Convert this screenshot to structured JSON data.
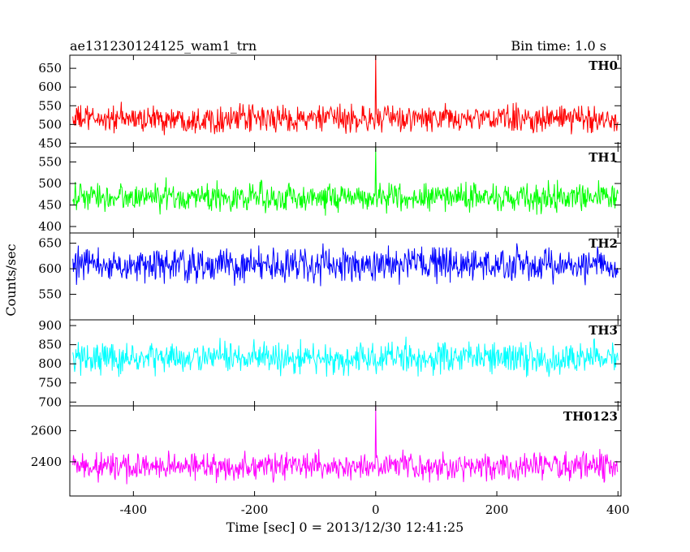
{
  "header": {
    "title": "ae131230124125_wam1_trn",
    "bin_time": "Bin time: 1.0 s"
  },
  "chart_data": {
    "type": "line",
    "xlabel": "Time [sec] 0 = 2013/12/30 12:41:25",
    "ylabel": "Counts/sec",
    "xlim": [
      -505,
      405
    ],
    "xticks": [
      -400,
      -200,
      0,
      200,
      400
    ],
    "x_start": -500,
    "x_end": 400,
    "x_step": 1,
    "panels": [
      {
        "name": "TH0",
        "color": "#ff0000",
        "ylim": [
          440,
          685
        ],
        "yticks": [
          450,
          500,
          550,
          600,
          650
        ],
        "mean": 515,
        "amplitude": 33,
        "spike_x": 0,
        "spike_y": 685
      },
      {
        "name": "TH1",
        "color": "#00ff00",
        "ylim": [
          385,
          585
        ],
        "yticks": [
          400,
          450,
          500,
          550
        ],
        "mean": 468,
        "amplitude": 30,
        "spike_x": 0,
        "spike_y": 585
      },
      {
        "name": "TH2",
        "color": "#0000ff",
        "ylim": [
          500,
          670
        ],
        "yticks": [
          550,
          600,
          650
        ],
        "mean": 607,
        "amplitude": 30,
        "spike_x": null,
        "spike_y": null
      },
      {
        "name": "TH3",
        "color": "#00ffff",
        "ylim": [
          690,
          915
        ],
        "yticks": [
          700,
          750,
          800,
          850,
          900
        ],
        "mean": 815,
        "amplitude": 38,
        "spike_x": null,
        "spike_y": null
      },
      {
        "name": "TH0123",
        "color": "#ff00ff",
        "ylim": [
          2180,
          2760
        ],
        "yticks": [
          2400,
          2600
        ],
        "mean": 2370,
        "amplitude": 80,
        "spike_x": 0,
        "spike_y": 2760
      }
    ]
  }
}
